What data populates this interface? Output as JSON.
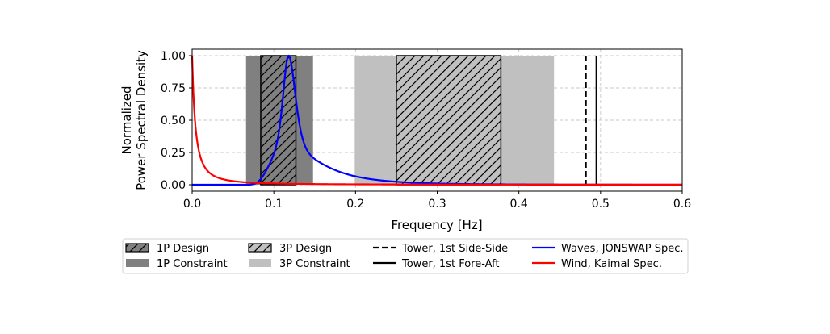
{
  "chart_data": {
    "type": "line",
    "xlabel": "Frequency [Hz]",
    "ylabel_line1": "Normalized",
    "ylabel_line2": "Power Spectral Density",
    "xlim": [
      0.0,
      0.6
    ],
    "ylim": [
      -0.05,
      1.05
    ],
    "xticks": [
      0.0,
      0.1,
      0.2,
      0.3,
      0.4,
      0.5,
      0.6
    ],
    "xtick_labels": [
      "0.0",
      "0.1",
      "0.2",
      "0.3",
      "0.4",
      "0.5",
      "0.6"
    ],
    "yticks": [
      0.0,
      0.25,
      0.5,
      0.75,
      1.0
    ],
    "ytick_labels": [
      "0.00",
      "0.25",
      "0.50",
      "0.75",
      "1.00"
    ],
    "grid": true,
    "bands": [
      {
        "name": "1P Constraint",
        "range": [
          0.066,
          0.148
        ],
        "color": "#808080",
        "hatch": false
      },
      {
        "name": "3P Constraint",
        "range": [
          0.199,
          0.443
        ],
        "color": "#c0c0c0",
        "hatch": false
      },
      {
        "name": "1P Design",
        "range": [
          0.084,
          0.127
        ],
        "color": "#808080",
        "hatch": true
      },
      {
        "name": "3P Design",
        "range": [
          0.25,
          0.378
        ],
        "color": "#c0c0c0",
        "hatch": true
      }
    ],
    "vlines": [
      {
        "name": "Tower, 1st Side-Side",
        "x": 0.482,
        "style": "dashed",
        "color": "#000000"
      },
      {
        "name": "Tower, 1st Fore-Aft",
        "x": 0.495,
        "style": "solid",
        "color": "#000000"
      }
    ],
    "series": [
      {
        "name": "Waves, JONSWAP Spec.",
        "color": "#0000ff",
        "model": "jonswap",
        "peak_frequency": 0.118,
        "gamma": 3.3
      },
      {
        "name": "Wind, Kaimal Spec.",
        "color": "#ff0000",
        "model": "kaimal",
        "coefficient": 149
      }
    ],
    "legend": {
      "placement": "below",
      "entries": [
        "1P Design",
        "1P Constraint",
        "3P Design",
        "3P Constraint",
        "Tower, 1st Side-Side",
        "Tower, 1st Fore-Aft",
        "Waves, JONSWAP Spec.",
        "Wind, Kaimal Spec."
      ]
    }
  }
}
